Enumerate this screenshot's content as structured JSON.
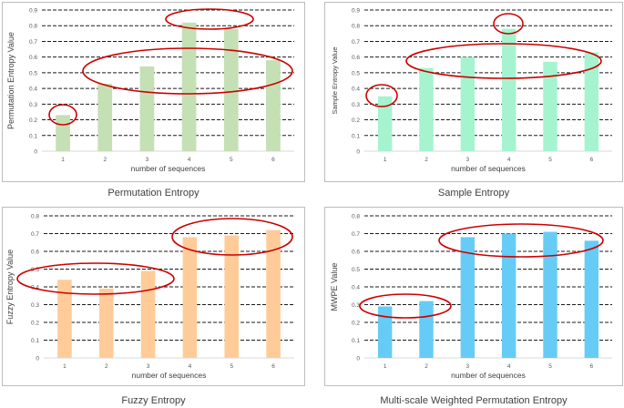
{
  "charts": [
    {
      "type": "bar",
      "title": "Permutation Entropy",
      "xlabel": "number of sequences",
      "ylabel": "Permutation Entropy Value",
      "categories": [
        "1",
        "2",
        "3",
        "4",
        "5",
        "6"
      ],
      "values": [
        0.23,
        0.43,
        0.54,
        0.82,
        0.78,
        0.58
      ],
      "ylim": [
        0,
        0.9
      ],
      "yticks": [
        "0",
        "0.1",
        "0.2",
        "0.3",
        "0.4",
        "0.5",
        "0.6",
        "0.7",
        "0.8",
        "0.9"
      ],
      "grid": true,
      "bar_color": "#c5e0b4",
      "annotations": [
        "ellipse around bar 1",
        "ellipse around bars 2-6",
        "ellipse around bar 4-5 peak"
      ]
    },
    {
      "type": "bar",
      "title": "Sample Entropy",
      "xlabel": "number of sequences",
      "ylabel": "Sample Entropy Value",
      "categories": [
        "1",
        "2",
        "3",
        "4",
        "5",
        "6"
      ],
      "values": [
        0.35,
        0.53,
        0.6,
        0.78,
        0.57,
        0.63
      ],
      "ylim": [
        0,
        0.9
      ],
      "yticks": [
        "0",
        "0.1",
        "0.2",
        "0.3",
        "0.4",
        "0.5",
        "0.6",
        "0.7",
        "0.8",
        "0.9"
      ],
      "grid": true,
      "bar_color": "#a5f4cf",
      "annotations": [
        "ellipse around bar 1",
        "ellipse around bars 2-6",
        "ellipse around bar 4 peak"
      ]
    },
    {
      "type": "bar",
      "title": "Fuzzy Entropy",
      "xlabel": "number of sequences",
      "ylabel": "Fuzzy Entropy Value",
      "categories": [
        "1",
        "2",
        "3",
        "4",
        "5",
        "6"
      ],
      "values": [
        0.44,
        0.39,
        0.49,
        0.68,
        0.69,
        0.72
      ],
      "ylim": [
        0,
        0.8
      ],
      "yticks": [
        "0",
        "0.1",
        "0.2",
        "0.3",
        "0.4",
        "0.5",
        "0.6",
        "0.7",
        "0.8"
      ],
      "grid": true,
      "bar_color": "#ffcc99",
      "annotations": [
        "ellipse around bars 1-3",
        "ellipse around bars 4-6"
      ]
    },
    {
      "type": "bar",
      "title": "Multi-scale Weighted Permutation Entropy",
      "xlabel": "number of sequences",
      "ylabel": "MWPE Value",
      "categories": [
        "1",
        "2",
        "3",
        "4",
        "5",
        "6"
      ],
      "values": [
        0.29,
        0.32,
        0.68,
        0.7,
        0.71,
        0.66
      ],
      "ylim": [
        0,
        0.8
      ],
      "yticks": [
        "0",
        "0.1",
        "0.2",
        "0.3",
        "0.4",
        "0.5",
        "0.6",
        "0.7",
        "0.8"
      ],
      "grid": true,
      "bar_color": "#66ccf5",
      "annotations": [
        "ellipse around bars 1-2",
        "ellipse around bars 3-6"
      ]
    }
  ],
  "colors": {
    "grid": "#1a1a1a",
    "axis": "#d9d9d9",
    "tick_text": "#595959",
    "highlight": "#cc0000"
  }
}
